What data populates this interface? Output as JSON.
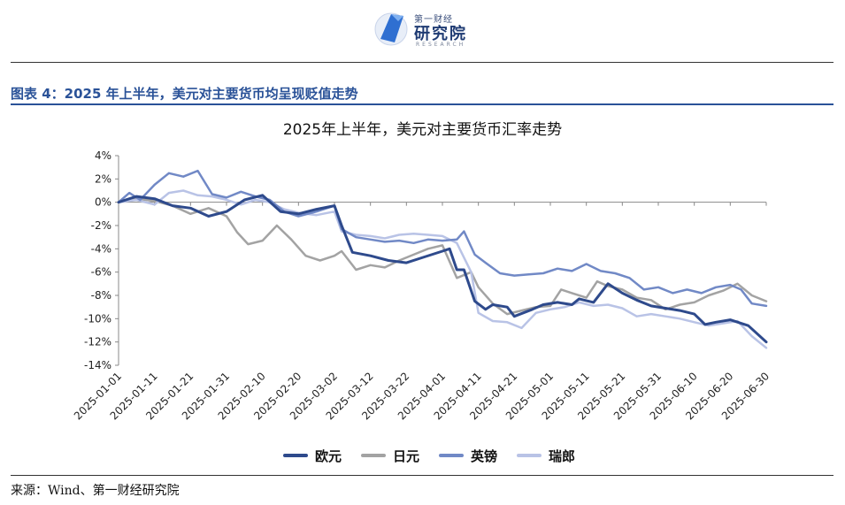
{
  "header": {
    "logo_top": "第一财经",
    "logo_main": "研究院",
    "logo_sub": "RESEARCH"
  },
  "figure_title": "图表 4：2025 年上半年，美元对主要货币均呈现贬值走势",
  "source": "来源：Wind、第一财经研究院",
  "colors": {
    "title_blue": "#2a5298",
    "eur": "#2e4a8c",
    "jpy": "#a3a3a3",
    "gbp": "#7189c6",
    "chf": "#b9c3e6"
  },
  "chart_data": {
    "type": "line",
    "title": "2025年上半年，美元对主要货币汇率走势",
    "xlabel": "",
    "ylabel": "",
    "x_ticks": [
      "2025-01-01",
      "2025-01-11",
      "2025-01-21",
      "2025-01-31",
      "2025-02-10",
      "2025-02-20",
      "2025-03-02",
      "2025-03-12",
      "2025-03-22",
      "2025-04-01",
      "2025-04-11",
      "2025-04-21",
      "2025-05-01",
      "2025-05-11",
      "2025-05-21",
      "2025-05-31",
      "2025-06-10",
      "2025-06-20",
      "2025-06-30"
    ],
    "x_range_days": [
      0,
      180
    ],
    "ylim": [
      -14,
      4
    ],
    "y_ticks": [
      "4%",
      "2%",
      "0%",
      "-2%",
      "-4%",
      "-6%",
      "-8%",
      "-10%",
      "-12%",
      "-14%"
    ],
    "y_tick_values": [
      4,
      2,
      0,
      -2,
      -4,
      -6,
      -8,
      -10,
      -12,
      -14
    ],
    "grid": false,
    "legend_position": "bottom",
    "series": [
      {
        "name": "欧元",
        "key": "eur",
        "points": [
          [
            0,
            0
          ],
          [
            5,
            0.5
          ],
          [
            10,
            0.3
          ],
          [
            15,
            -0.3
          ],
          [
            20,
            -0.5
          ],
          [
            25,
            -1.2
          ],
          [
            30,
            -0.8
          ],
          [
            35,
            0.2
          ],
          [
            40,
            0.6
          ],
          [
            45,
            -0.8
          ],
          [
            50,
            -1.0
          ],
          [
            55,
            -0.6
          ],
          [
            60,
            -0.3
          ],
          [
            62,
            -2.0
          ],
          [
            65,
            -4.3
          ],
          [
            70,
            -4.6
          ],
          [
            75,
            -5.0
          ],
          [
            80,
            -5.2
          ],
          [
            85,
            -4.7
          ],
          [
            90,
            -4.2
          ],
          [
            92,
            -4.0
          ],
          [
            94,
            -5.8
          ],
          [
            96,
            -5.8
          ],
          [
            99,
            -8.5
          ],
          [
            102,
            -9.2
          ],
          [
            104,
            -8.8
          ],
          [
            108,
            -9.0
          ],
          [
            110,
            -9.8
          ],
          [
            115,
            -9.2
          ],
          [
            118,
            -8.8
          ],
          [
            122,
            -8.6
          ],
          [
            126,
            -8.8
          ],
          [
            128,
            -8.3
          ],
          [
            132,
            -8.6
          ],
          [
            136,
            -7.0
          ],
          [
            140,
            -7.8
          ],
          [
            144,
            -8.4
          ],
          [
            148,
            -8.9
          ],
          [
            152,
            -9.1
          ],
          [
            156,
            -9.3
          ],
          [
            160,
            -9.6
          ],
          [
            163,
            -10.5
          ],
          [
            166,
            -10.3
          ],
          [
            170,
            -10.1
          ],
          [
            175,
            -10.6
          ],
          [
            180,
            -12.0
          ]
        ]
      },
      {
        "name": "日元",
        "key": "jpy",
        "points": [
          [
            0,
            0
          ],
          [
            5,
            0.3
          ],
          [
            10,
            0.1
          ],
          [
            15,
            -0.3
          ],
          [
            20,
            -1.0
          ],
          [
            25,
            -0.5
          ],
          [
            30,
            -1.2
          ],
          [
            33,
            -2.6
          ],
          [
            36,
            -3.6
          ],
          [
            40,
            -3.3
          ],
          [
            44,
            -2.0
          ],
          [
            48,
            -3.2
          ],
          [
            52,
            -4.6
          ],
          [
            56,
            -5.0
          ],
          [
            60,
            -4.6
          ],
          [
            62,
            -4.2
          ],
          [
            66,
            -5.8
          ],
          [
            70,
            -5.4
          ],
          [
            74,
            -5.6
          ],
          [
            78,
            -5.0
          ],
          [
            82,
            -4.5
          ],
          [
            86,
            -4.0
          ],
          [
            90,
            -3.7
          ],
          [
            94,
            -6.5
          ],
          [
            98,
            -6.0
          ],
          [
            100,
            -7.3
          ],
          [
            104,
            -8.7
          ],
          [
            108,
            -9.6
          ],
          [
            112,
            -9.3
          ],
          [
            116,
            -9.0
          ],
          [
            120,
            -8.9
          ],
          [
            123,
            -7.5
          ],
          [
            126,
            -7.8
          ],
          [
            130,
            -8.2
          ],
          [
            133,
            -6.8
          ],
          [
            136,
            -7.2
          ],
          [
            140,
            -7.5
          ],
          [
            144,
            -8.2
          ],
          [
            148,
            -8.4
          ],
          [
            152,
            -9.2
          ],
          [
            156,
            -8.8
          ],
          [
            160,
            -8.6
          ],
          [
            164,
            -8.0
          ],
          [
            168,
            -7.6
          ],
          [
            172,
            -7.0
          ],
          [
            176,
            -8.0
          ],
          [
            180,
            -8.5
          ]
        ]
      },
      {
        "name": "英镑",
        "key": "gbp",
        "points": [
          [
            0,
            0
          ],
          [
            3,
            0.8
          ],
          [
            6,
            0.2
          ],
          [
            10,
            1.5
          ],
          [
            14,
            2.5
          ],
          [
            18,
            2.2
          ],
          [
            22,
            2.7
          ],
          [
            26,
            0.7
          ],
          [
            30,
            0.4
          ],
          [
            34,
            0.9
          ],
          [
            38,
            0.5
          ],
          [
            42,
            0.2
          ],
          [
            46,
            -0.8
          ],
          [
            50,
            -1.2
          ],
          [
            55,
            -0.8
          ],
          [
            60,
            -0.3
          ],
          [
            62,
            -2.3
          ],
          [
            66,
            -3.0
          ],
          [
            70,
            -3.2
          ],
          [
            74,
            -3.4
          ],
          [
            78,
            -3.3
          ],
          [
            82,
            -3.5
          ],
          [
            86,
            -3.2
          ],
          [
            90,
            -3.3
          ],
          [
            94,
            -3.2
          ],
          [
            96,
            -2.5
          ],
          [
            99,
            -4.5
          ],
          [
            102,
            -5.2
          ],
          [
            106,
            -6.1
          ],
          [
            110,
            -6.3
          ],
          [
            114,
            -6.2
          ],
          [
            118,
            -6.1
          ],
          [
            122,
            -5.7
          ],
          [
            126,
            -5.9
          ],
          [
            130,
            -5.3
          ],
          [
            134,
            -5.9
          ],
          [
            138,
            -6.1
          ],
          [
            142,
            -6.5
          ],
          [
            146,
            -7.5
          ],
          [
            150,
            -7.3
          ],
          [
            154,
            -7.8
          ],
          [
            158,
            -7.5
          ],
          [
            162,
            -7.8
          ],
          [
            166,
            -7.3
          ],
          [
            170,
            -7.1
          ],
          [
            173,
            -7.5
          ],
          [
            176,
            -8.7
          ],
          [
            180,
            -8.9
          ]
        ]
      },
      {
        "name": "瑞郎",
        "key": "chf",
        "points": [
          [
            0,
            0
          ],
          [
            5,
            0.2
          ],
          [
            10,
            -0.2
          ],
          [
            14,
            0.8
          ],
          [
            18,
            1.0
          ],
          [
            22,
            0.6
          ],
          [
            26,
            0.5
          ],
          [
            30,
            0.2
          ],
          [
            34,
            -0.2
          ],
          [
            38,
            0.2
          ],
          [
            42,
            0.0
          ],
          [
            46,
            -0.6
          ],
          [
            50,
            -0.9
          ],
          [
            55,
            -1.1
          ],
          [
            60,
            -0.8
          ],
          [
            62,
            -2.5
          ],
          [
            66,
            -2.8
          ],
          [
            70,
            -2.9
          ],
          [
            74,
            -3.1
          ],
          [
            78,
            -2.8
          ],
          [
            82,
            -2.7
          ],
          [
            86,
            -2.8
          ],
          [
            90,
            -2.9
          ],
          [
            94,
            -3.5
          ],
          [
            98,
            -6.0
          ],
          [
            100,
            -9.5
          ],
          [
            104,
            -10.2
          ],
          [
            108,
            -10.3
          ],
          [
            112,
            -10.8
          ],
          [
            116,
            -9.5
          ],
          [
            120,
            -9.2
          ],
          [
            124,
            -9.0
          ],
          [
            128,
            -8.6
          ],
          [
            132,
            -8.9
          ],
          [
            136,
            -8.8
          ],
          [
            140,
            -9.1
          ],
          [
            144,
            -9.8
          ],
          [
            148,
            -9.6
          ],
          [
            152,
            -9.8
          ],
          [
            156,
            -10.0
          ],
          [
            160,
            -10.3
          ],
          [
            164,
            -10.6
          ],
          [
            168,
            -10.4
          ],
          [
            172,
            -10.2
          ],
          [
            176,
            -11.5
          ],
          [
            180,
            -12.5
          ]
        ]
      }
    ]
  }
}
